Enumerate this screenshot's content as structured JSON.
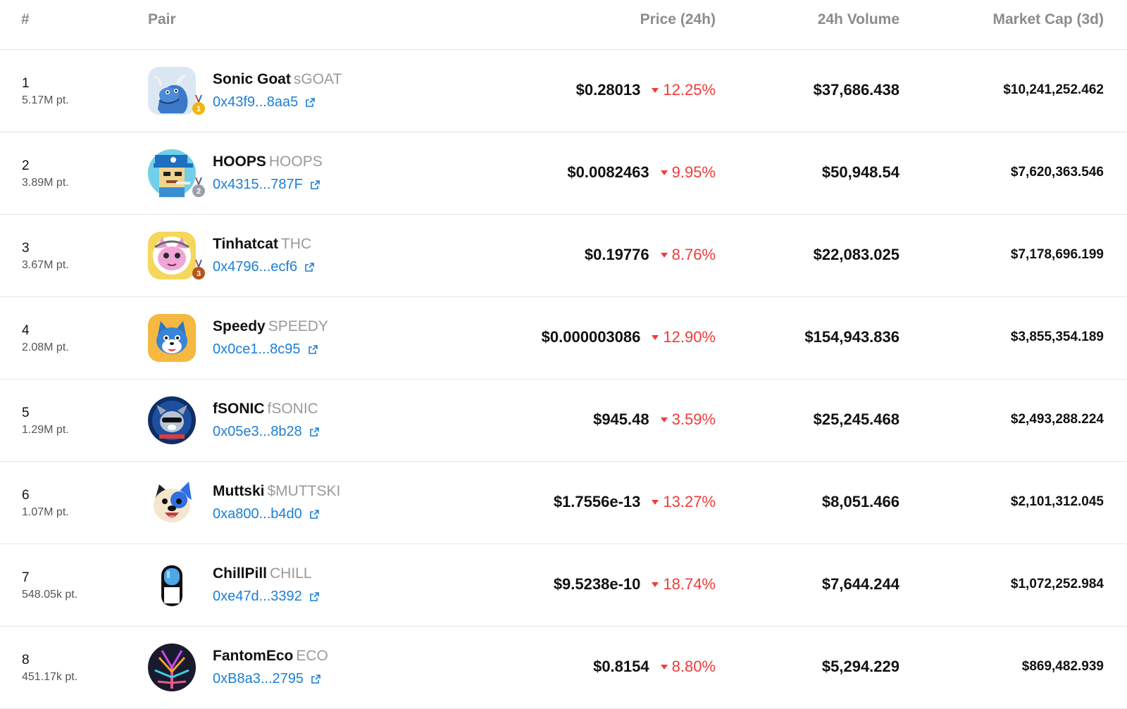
{
  "header": {
    "rank": "#",
    "pair": "Pair",
    "price": "Price (24h)",
    "volume": "24h Volume",
    "market_cap": "Market Cap (3d)"
  },
  "rows": [
    {
      "rank": "1",
      "points": "5.17M pt.",
      "name": "Sonic Goat",
      "symbol": "sGOAT",
      "address": "0x43f9...8aa5",
      "price": "$0.28013",
      "change": "12.25%",
      "volume": "$37,686.438",
      "market_cap": "$10,241,252.462",
      "medal": "1",
      "icon": "goat-avatar"
    },
    {
      "rank": "2",
      "points": "3.89M pt.",
      "name": "HOOPS",
      "symbol": "HOOPS",
      "address": "0x4315...787F",
      "price": "$0.0082463",
      "change": "9.95%",
      "volume": "$50,948.54",
      "market_cap": "$7,620,363.546",
      "medal": "2",
      "icon": "pixel-hoops-avatar"
    },
    {
      "rank": "3",
      "points": "3.67M pt.",
      "name": "Tinhatcat",
      "symbol": "THC",
      "address": "0x4796...ecf6",
      "price": "$0.19776",
      "change": "8.76%",
      "volume": "$22,083.025",
      "market_cap": "$7,178,696.199",
      "medal": "3",
      "icon": "cat-avatar"
    },
    {
      "rank": "4",
      "points": "2.08M pt.",
      "name": "Speedy",
      "symbol": "SPEEDY",
      "address": "0x0ce1...8c95",
      "price": "$0.000003086",
      "change": "12.90%",
      "volume": "$154,943.836",
      "market_cap": "$3,855,354.189",
      "medal": "",
      "icon": "fox-avatar"
    },
    {
      "rank": "5",
      "points": "1.29M pt.",
      "name": "fSONIC",
      "symbol": "fSONIC",
      "address": "0x05e3...8b28",
      "price": "$945.48",
      "change": "3.59%",
      "volume": "$25,245.468",
      "market_cap": "$2,493,288.224",
      "medal": "",
      "icon": "fsonic-avatar"
    },
    {
      "rank": "6",
      "points": "1.07M pt.",
      "name": "Muttski",
      "symbol": "$MUTTSKI",
      "address": "0xa800...b4d0",
      "price": "$1.7556e-13",
      "change": "13.27%",
      "volume": "$8,051.466",
      "market_cap": "$2,101,312.045",
      "medal": "",
      "icon": "dog-avatar"
    },
    {
      "rank": "7",
      "points": "548.05k pt.",
      "name": "ChillPill",
      "symbol": "CHILL",
      "address": "0xe47d...3392",
      "price": "$9.5238e-10",
      "change": "18.74%",
      "volume": "$7,644.244",
      "market_cap": "$1,072,252.984",
      "medal": "",
      "icon": "pill-avatar"
    },
    {
      "rank": "8",
      "points": "451.17k pt.",
      "name": "FantomEco",
      "symbol": "ECO",
      "address": "0xB8a3...2795",
      "price": "$0.8154",
      "change": "8.80%",
      "volume": "$5,294.229",
      "market_cap": "$869,482.939",
      "medal": "",
      "icon": "eco-avatar"
    }
  ],
  "colors": {
    "link": "#1c7fd6",
    "negative": "#ef3b3b",
    "header_text": "#8c8c8c",
    "symbol_text": "#9a9a9a",
    "divider": "#e6e6e6",
    "medal_gold": "#f2b50d",
    "medal_silver": "#9aa0a6",
    "medal_bronze": "#b4541d"
  }
}
